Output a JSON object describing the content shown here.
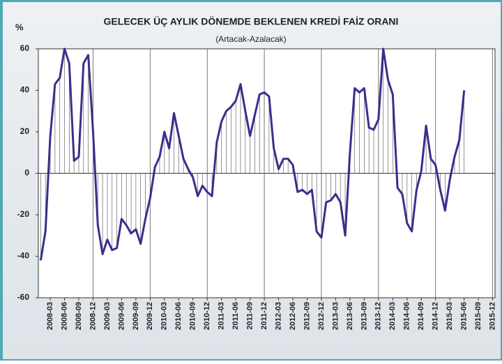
{
  "chart_data": {
    "type": "line",
    "title": "GELECEK ÜÇ AYLIK DÖNEMDE BEKLENEN KREDİ FAİZ ORANI",
    "subtitle": "(Artacak-Azalacak)",
    "y_label": "%",
    "categories": [
      null,
      null,
      "2008-03",
      null,
      null,
      "2008-06",
      null,
      null,
      "2008-09",
      null,
      null,
      "2008-12",
      null,
      null,
      "2009-03",
      null,
      null,
      "2009-06",
      null,
      null,
      "2009-09",
      null,
      null,
      "2009-12",
      null,
      null,
      "2010-03",
      null,
      null,
      "2010-06",
      null,
      null,
      "2010-09",
      null,
      null,
      "2010-12",
      null,
      null,
      "2011-03",
      null,
      null,
      "2011-06",
      null,
      null,
      "2011-09",
      null,
      null,
      "2011-12",
      null,
      null,
      "2012-03",
      null,
      null,
      "2012-06",
      null,
      null,
      "2012-09",
      null,
      null,
      "2012-12",
      null,
      null,
      "2013-03",
      null,
      null,
      "2013-06",
      null,
      null,
      "2013-09",
      null,
      null,
      "2013-12",
      null,
      null,
      "2014-03",
      null,
      null,
      "2014-06",
      null,
      null,
      "2014-09",
      null,
      null,
      "2014-12",
      null,
      null,
      "2015-03",
      null,
      null,
      "2015-06",
      null,
      null,
      "2015-09",
      null,
      null,
      "2015-12"
    ],
    "series": [
      {
        "color": "#3a2e8c",
        "values": [
          -42,
          -28,
          18,
          43,
          46,
          60,
          53,
          6,
          8,
          53,
          57,
          20,
          -25,
          -39,
          -32,
          -37,
          -36,
          -22,
          -25,
          -29,
          -27,
          -34,
          -22,
          -12,
          3,
          8,
          20,
          12,
          29,
          18,
          7,
          2,
          -2,
          -11,
          -6,
          -9,
          -11,
          15,
          25,
          30,
          32,
          35,
          43,
          30,
          18,
          28,
          38,
          39,
          37,
          12,
          2,
          7,
          7,
          4,
          -9,
          -8,
          -10,
          -8,
          -28,
          -31,
          -14,
          -13,
          -10,
          -14,
          -30,
          10,
          41,
          39,
          41,
          22,
          21,
          26,
          60,
          45,
          38,
          -7,
          -10,
          -24,
          -28,
          -8,
          1,
          23,
          7,
          4,
          -8,
          -18,
          -3,
          8,
          16,
          40,
          null,
          null,
          null,
          null,
          null,
          null
        ]
      }
    ],
    "ylim": [
      -60,
      60
    ],
    "yticks": [
      60,
      40,
      20,
      0,
      -20,
      -40,
      -60
    ]
  }
}
